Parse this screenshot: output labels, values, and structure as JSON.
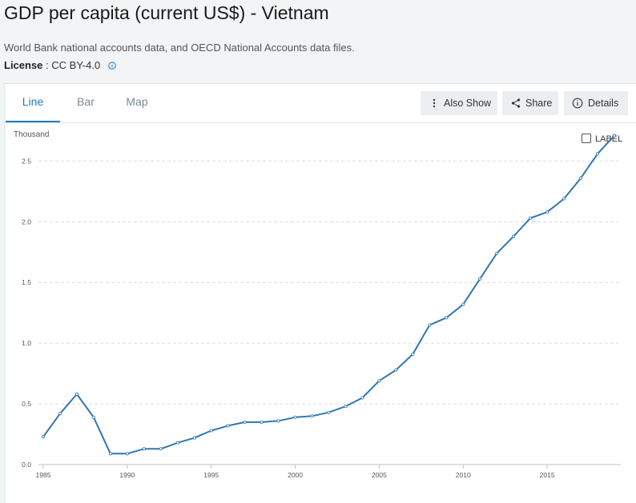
{
  "header": {
    "title": "GDP per capita (current US$) - Vietnam",
    "source": "World Bank national accounts data, and OECD National Accounts data files.",
    "license_label": "License",
    "license_value": " : CC BY-4.0"
  },
  "tabs": [
    {
      "label": "Line",
      "active": true
    },
    {
      "label": "Bar",
      "active": false
    },
    {
      "label": "Map",
      "active": false
    }
  ],
  "toolbar": {
    "also_show": "Also Show",
    "share": "Share",
    "details": "Details"
  },
  "label_toggle": "LABEL",
  "colors": {
    "accent": "#1f7ac0",
    "line": "#2f77b1"
  },
  "chart_data": {
    "type": "line",
    "unit_label": "Thousand",
    "x": [
      1985,
      1986,
      1987,
      1988,
      1989,
      1990,
      1991,
      1992,
      1993,
      1994,
      1995,
      1996,
      1997,
      1998,
      1999,
      2000,
      2001,
      2002,
      2003,
      2004,
      2005,
      2006,
      2007,
      2008,
      2009,
      2010,
      2011,
      2012,
      2013,
      2014,
      2015,
      2016,
      2017,
      2018,
      2019
    ],
    "series": [
      {
        "values": [
          0.23,
          0.42,
          0.58,
          0.39,
          0.09,
          0.09,
          0.13,
          0.13,
          0.18,
          0.22,
          0.28,
          0.32,
          0.35,
          0.35,
          0.36,
          0.39,
          0.4,
          0.43,
          0.48,
          0.55,
          0.69,
          0.78,
          0.91,
          1.15,
          1.21,
          1.32,
          1.53,
          1.74,
          1.88,
          2.03,
          2.08,
          2.19,
          2.36,
          2.56,
          2.71
        ]
      }
    ],
    "xticks": [
      1985,
      1990,
      1995,
      2000,
      2005,
      2010,
      2015
    ],
    "yticks": [
      0.0,
      0.5,
      1.0,
      1.5,
      2.0,
      2.5
    ],
    "ytick_labels": [
      "0.0",
      "0.5",
      "1.0",
      "1.5",
      "2.0",
      "2.5"
    ],
    "xlim": [
      1985,
      2019
    ],
    "ylim": [
      0,
      2.72
    ],
    "grid": true
  }
}
